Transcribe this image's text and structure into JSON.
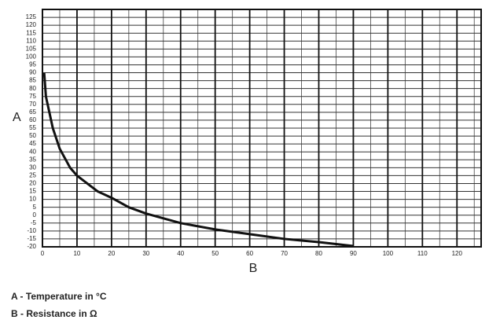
{
  "chart_data": {
    "type": "line",
    "y_label": "A",
    "x_label": "B",
    "notes": [
      "A - Temperature in °C",
      "B - Resistance in Ω"
    ],
    "x": [
      0.5,
      1,
      3,
      5,
      8,
      10,
      16,
      20,
      25,
      30,
      40,
      50,
      60,
      70,
      80,
      90
    ],
    "series": [
      {
        "color": "#111111",
        "values": [
          90,
          75,
          55,
          42,
          30,
          25,
          15,
          11,
          5,
          1,
          -5,
          -9,
          -12,
          -15,
          -17,
          -19.5
        ]
      }
    ],
    "xlim": [
      0,
      127
    ],
    "xticks": [
      0,
      10,
      20,
      30,
      40,
      50,
      60,
      70,
      80,
      90,
      100,
      110,
      120
    ],
    "ylim": [
      -20,
      130
    ],
    "yticks": [
      -20,
      -15,
      -10,
      -5,
      0,
      5,
      10,
      15,
      20,
      25,
      30,
      35,
      40,
      45,
      50,
      55,
      60,
      65,
      70,
      75,
      80,
      85,
      90,
      95,
      100,
      105,
      110,
      115,
      120,
      125
    ],
    "grid": true
  }
}
